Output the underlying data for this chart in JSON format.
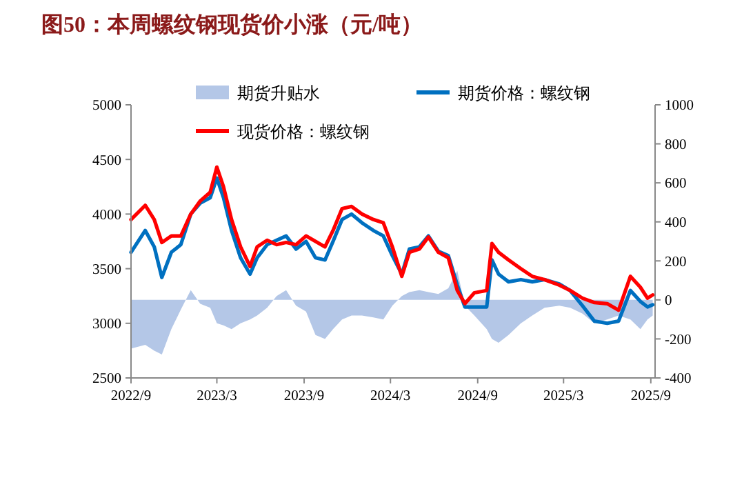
{
  "chart_data": {
    "type": "line",
    "title": "图50：本周螺纹钢现货价小涨（元/吨）",
    "x": [
      "2022-09-01",
      "2022-10-01",
      "2022-10-20",
      "2022-11-05",
      "2022-11-25",
      "2022-12-15",
      "2023-01-05",
      "2023-01-25",
      "2023-02-15",
      "2023-03-01",
      "2023-03-15",
      "2023-04-01",
      "2023-04-20",
      "2023-05-10",
      "2023-05-25",
      "2023-06-15",
      "2023-07-05",
      "2023-07-25",
      "2023-08-15",
      "2023-09-05",
      "2023-09-25",
      "2023-10-15",
      "2023-11-01",
      "2023-11-20",
      "2023-12-10",
      "2024-01-01",
      "2024-01-25",
      "2024-02-15",
      "2024-03-05",
      "2024-03-25",
      "2024-04-10",
      "2024-05-01",
      "2024-05-20",
      "2024-06-10",
      "2024-07-01",
      "2024-07-20",
      "2024-08-05",
      "2024-08-25",
      "2024-09-20",
      "2024-10-01",
      "2024-10-15",
      "2024-11-05",
      "2024-12-01",
      "2024-12-25",
      "2025-01-20",
      "2025-02-20",
      "2025-03-15",
      "2025-04-10",
      "2025-05-05",
      "2025-06-01",
      "2025-06-25",
      "2025-07-20",
      "2025-08-10",
      "2025-08-25",
      "2025-09-05"
    ],
    "series": [
      {
        "name": "期货升贴水",
        "type": "area",
        "axis": "y2",
        "color": "#b4c7e7",
        "values": [
          -250,
          -230,
          -260,
          -280,
          -150,
          -50,
          50,
          -20,
          -40,
          -120,
          -130,
          -150,
          -120,
          -100,
          -80,
          -40,
          20,
          50,
          -30,
          -60,
          -180,
          -200,
          -150,
          -100,
          -80,
          -80,
          -90,
          -100,
          -30,
          20,
          40,
          50,
          40,
          30,
          60,
          150,
          -30,
          -80,
          -150,
          -200,
          -220,
          -180,
          -120,
          -80,
          -40,
          -30,
          -40,
          -70,
          -120,
          -100,
          -80,
          -100,
          -150,
          -100,
          -80
        ]
      },
      {
        "name": "期货价格：螺纹钢",
        "color": "#0070c0",
        "values": [
          3650,
          3850,
          3700,
          3420,
          3650,
          3720,
          4000,
          4100,
          4150,
          4330,
          4150,
          3850,
          3600,
          3450,
          3600,
          3720,
          3760,
          3800,
          3680,
          3750,
          3600,
          3580,
          3750,
          3950,
          4000,
          3920,
          3850,
          3800,
          3620,
          3450,
          3680,
          3700,
          3800,
          3660,
          3620,
          3350,
          3150,
          3150,
          3150,
          3580,
          3450,
          3380,
          3400,
          3380,
          3400,
          3360,
          3300,
          3160,
          3020,
          3000,
          3020,
          3300,
          3200,
          3150,
          3170
        ]
      },
      {
        "name": "现货价格：螺纹钢",
        "color": "#ff0000",
        "values": [
          3950,
          4080,
          3950,
          3740,
          3800,
          3800,
          4000,
          4120,
          4200,
          4430,
          4250,
          3950,
          3700,
          3520,
          3700,
          3760,
          3720,
          3740,
          3720,
          3800,
          3750,
          3700,
          3850,
          4050,
          4070,
          4000,
          3950,
          3920,
          3700,
          3430,
          3650,
          3680,
          3790,
          3650,
          3600,
          3300,
          3180,
          3280,
          3300,
          3730,
          3650,
          3580,
          3500,
          3430,
          3400,
          3350,
          3300,
          3230,
          3190,
          3180,
          3120,
          3430,
          3330,
          3230,
          3260
        ]
      }
    ],
    "xlim": [
      "2022-09-01",
      "2025-09-10"
    ],
    "xticks": [
      {
        "value": "2022-09-01",
        "label": "2022/9"
      },
      {
        "value": "2023-03-01",
        "label": "2023/3"
      },
      {
        "value": "2023-09-01",
        "label": "2023/9"
      },
      {
        "value": "2024-03-01",
        "label": "2024/3"
      },
      {
        "value": "2024-09-01",
        "label": "2024/9"
      },
      {
        "value": "2025-03-01",
        "label": "2025/3"
      },
      {
        "value": "2025-09-01",
        "label": "2025/9"
      }
    ],
    "ylim": [
      2500,
      5000
    ],
    "yticks": [
      2500,
      3000,
      3500,
      4000,
      4500,
      5000
    ],
    "y2lim": [
      -400,
      1000
    ],
    "y2ticks": [
      -400,
      -200,
      0,
      200,
      400,
      600,
      800,
      1000
    ],
    "legend": "top",
    "grid": false
  }
}
